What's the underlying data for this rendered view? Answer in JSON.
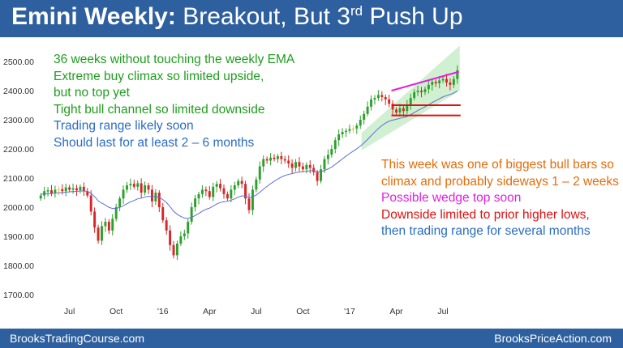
{
  "header": {
    "title_bold": "Emini Weekly:",
    "title_rest": " Breakout, But 3",
    "title_sup": "rd",
    "title_end": " Push Up"
  },
  "annotations": {
    "left": [
      {
        "text": "36 weeks without touching the weekly EMA",
        "color": "#1e9d1e"
      },
      {
        "text": "Extreme buy climax so limited upside,",
        "color": "#1e9d1e"
      },
      {
        "text": "but no top yet",
        "color": "#1e9d1e"
      },
      {
        "text": "Tight bull channel so limited downside",
        "color": "#1e9d1e"
      },
      {
        "text": "Trading range likely soon",
        "color": "#2a6cc4"
      },
      {
        "text": "Should last for at least 2 – 6 months",
        "color": "#2a6cc4"
      }
    ],
    "right": [
      {
        "text": "This week was one of biggest bull bars so",
        "color": "#e46c0a"
      },
      {
        "text": "climax and probably sideways 1 – 2 weeks",
        "color": "#e46c0a"
      },
      {
        "text": "Possible wedge top soon",
        "color": "#e020e0"
      },
      {
        "text": "Downside limited to prior higher lows,",
        "color": "#e01010"
      },
      {
        "text": "then trading range for several months",
        "color": "#2a6cc4"
      }
    ]
  },
  "footer": {
    "left": "BrooksTradingCourse.com",
    "right": "BrooksPriceAction.com"
  },
  "colors": {
    "bull": "#2ca02c",
    "bear": "#d62728",
    "ema": "#5b6fd6",
    "channel": "#c9ecc9",
    "wedge": "#e020e0",
    "support": "#e01010",
    "doji": "#e8c84a"
  },
  "chart_data": {
    "type": "candlestick",
    "y_ticks": [
      "2500.00",
      "2400.00",
      "2300.00",
      "2200.00",
      "2100.00",
      "2000.00",
      "1900.00",
      "1800.00",
      "1700.00"
    ],
    "y_tick_values": [
      2500,
      2400,
      2300,
      2200,
      2100,
      2000,
      1900,
      1800,
      1700
    ],
    "ylim": [
      1680,
      2560
    ],
    "x_ticks": [
      "Jul",
      "Oct",
      "'16",
      "Apr",
      "Jul",
      "Oct",
      "'17",
      "Apr",
      "Jul"
    ],
    "x_tick_index": [
      8,
      21,
      34,
      47,
      60,
      73,
      86,
      99,
      112
    ],
    "closes": [
      2040,
      2055,
      2058,
      2048,
      2060,
      2062,
      2055,
      2068,
      2060,
      2065,
      2058,
      2070,
      2055,
      2040,
      1985,
      1930,
      1885,
      1935,
      1950,
      1920,
      1960,
      2000,
      2030,
      2060,
      2075,
      2080,
      2070,
      2082,
      2050,
      2075,
      2060,
      2020,
      2050,
      2000,
      1955,
      1920,
      1870,
      1835,
      1875,
      1900,
      1910,
      1950,
      2000,
      2030,
      2045,
      2060,
      2055,
      2035,
      2070,
      2080,
      2065,
      2045,
      2030,
      2060,
      2075,
      2090,
      2080,
      2030,
      1990,
      2060,
      2095,
      2140,
      2165,
      2160,
      2170,
      2165,
      2175,
      2165,
      2160,
      2150,
      2135,
      2155,
      2140,
      2130,
      2145,
      2135,
      2120,
      2090,
      2130,
      2165,
      2180,
      2200,
      2230,
      2250,
      2258,
      2262,
      2268,
      2270,
      2280,
      2300,
      2320,
      2345,
      2370,
      2375,
      2385,
      2378,
      2370,
      2355,
      2335,
      2325,
      2340,
      2330,
      2350,
      2375,
      2395,
      2400,
      2395,
      2405,
      2420,
      2430,
      2425,
      2435,
      2440,
      2428,
      2420,
      2440,
      2470
    ],
    "ema_start": 2045,
    "support_lines": [
      2350,
      2315
    ],
    "wedge_line": {
      "from_index": 99,
      "from_price": 2400,
      "to_index": 116,
      "to_price": 2465
    },
    "channel": {
      "from_index": 90,
      "lower_from": 2195,
      "upper_from": 2255,
      "to_index": 116,
      "lower_to": 2400,
      "upper_to": 2555
    }
  }
}
